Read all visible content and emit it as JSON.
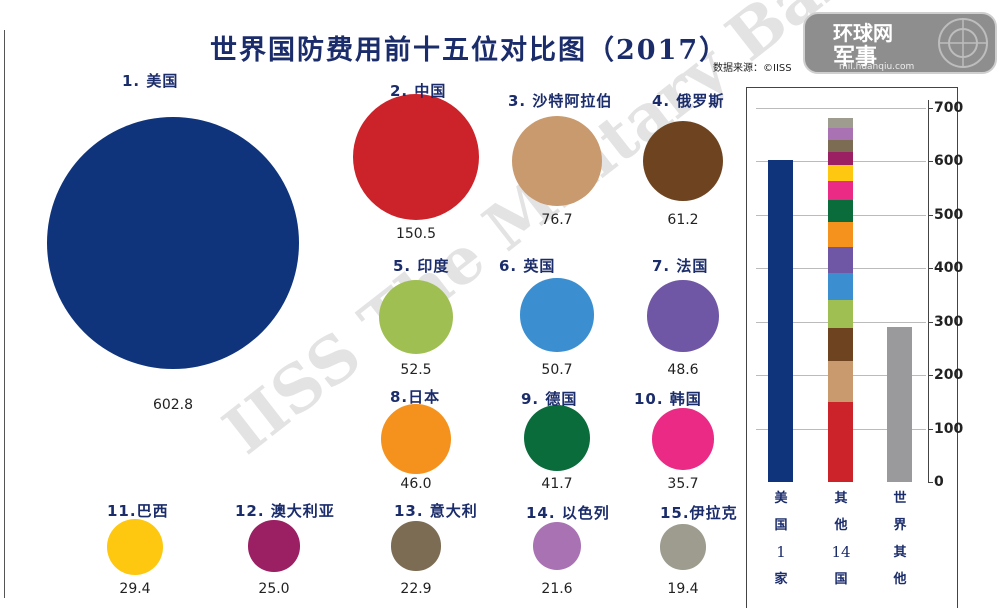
{
  "title": "世界国防费用前十五位对比图（2017）",
  "source": "数据来源：©IISS",
  "logo": {
    "name": "环球网 军事",
    "url": "mil.huanqiu.com"
  },
  "watermark": "IISS The Military Balance",
  "colors": {
    "title": "#1b2c6b",
    "watermark": "#e3e3e3",
    "world_rest": "#9a9a9c"
  },
  "chart_data": [
    {
      "type": "bubble",
      "unit": "",
      "items": [
        {
          "label": "1. 美国",
          "value": 602.8,
          "color": "#0f347c"
        },
        {
          "label": "2. 中国",
          "value": 150.5,
          "color": "#cc2229"
        },
        {
          "label": "3. 沙特阿拉伯",
          "value": 76.7,
          "color": "#c89a6e"
        },
        {
          "label": "4. 俄罗斯",
          "value": 61.2,
          "color": "#6e4420"
        },
        {
          "label": "5. 印度",
          "value": 52.5,
          "color": "#9fbf52"
        },
        {
          "label": "6. 英国",
          "value": 50.7,
          "color": "#3b8fd1"
        },
        {
          "label": "7. 法国",
          "value": 48.6,
          "color": "#6f57a6"
        },
        {
          "label": "8.日本",
          "value": 46.0,
          "color": "#f5921e"
        },
        {
          "label": "9. 德国",
          "value": 41.7,
          "color": "#0a6b3b"
        },
        {
          "label": "10. 韩国",
          "value": 35.7,
          "color": "#ea2a85"
        },
        {
          "label": "11.巴西",
          "value": 29.4,
          "color": "#fdc80f"
        },
        {
          "label": "12. 澳大利亚",
          "value": 25.0,
          "color": "#9a1f63"
        },
        {
          "label": "13. 意大利",
          "value": 22.9,
          "color": "#7c6c53"
        },
        {
          "label": "14. 以色列",
          "value": 21.6,
          "color": "#a872b3"
        },
        {
          "label": "15.伊拉克",
          "value": 19.4,
          "color": "#9d9c8f"
        }
      ]
    },
    {
      "type": "stacked-bar",
      "ylim": [
        0,
        700
      ],
      "yticks": [
        0,
        100,
        200,
        300,
        400,
        500,
        600,
        700
      ],
      "bars": [
        {
          "caption": [
            "美",
            "国",
            "1",
            "家"
          ],
          "segments": [
            {
              "value": 602.8,
              "color": "#0f347c"
            }
          ]
        },
        {
          "caption": [
            "其",
            "他",
            "14",
            "国"
          ],
          "segments": [
            {
              "value": 150.5,
              "color": "#cc2229"
            },
            {
              "value": 76.7,
              "color": "#c89a6e"
            },
            {
              "value": 61.2,
              "color": "#6e4420"
            },
            {
              "value": 52.5,
              "color": "#9fbf52"
            },
            {
              "value": 50.7,
              "color": "#3b8fd1"
            },
            {
              "value": 48.6,
              "color": "#6f57a6"
            },
            {
              "value": 46.0,
              "color": "#f5921e"
            },
            {
              "value": 41.7,
              "color": "#0a6b3b"
            },
            {
              "value": 35.7,
              "color": "#ea2a85"
            },
            {
              "value": 29.4,
              "color": "#fdc80f"
            },
            {
              "value": 25.0,
              "color": "#9a1f63"
            },
            {
              "value": 22.9,
              "color": "#7c6c53"
            },
            {
              "value": 21.6,
              "color": "#a872b3"
            },
            {
              "value": 19.4,
              "color": "#9d9c8f"
            }
          ]
        },
        {
          "caption": [
            "世",
            "界",
            "其",
            "他"
          ],
          "segments": [
            {
              "value": 290,
              "color": "#9a9a9c"
            }
          ]
        }
      ]
    }
  ]
}
